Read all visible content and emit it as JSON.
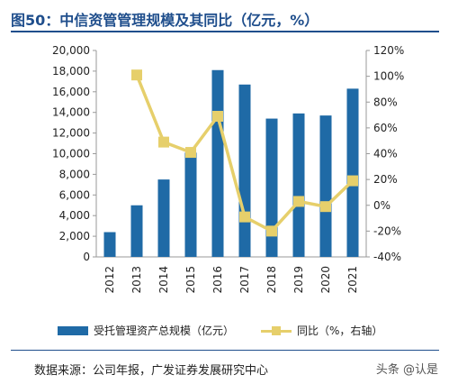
{
  "title": "图50：中信资管管理规模及其同比（亿元，%）",
  "legend": {
    "bar_label": "受托管理资产总规模（亿元）",
    "line_label": "同比（%，右轴）"
  },
  "source": "数据来源：公司年报，广发证券发展研究中心",
  "watermark": "头条 @认是",
  "colors": {
    "bar": "#1f6aa6",
    "line": "#e6cf6b",
    "title": "#1f4e8c"
  },
  "chart_data": {
    "type": "bar",
    "categories": [
      "2012",
      "2013",
      "2014",
      "2015",
      "2016",
      "2017",
      "2018",
      "2019",
      "2020",
      "2021"
    ],
    "series": [
      {
        "name": "受托管理资产总规模（亿元）",
        "type": "bar",
        "axis": "left",
        "values": [
          2400,
          5000,
          7500,
          10100,
          18100,
          16700,
          13400,
          13900,
          13700,
          16300
        ]
      },
      {
        "name": "同比（%，右轴）",
        "type": "line",
        "axis": "right",
        "values": [
          null,
          101,
          49,
          41,
          69,
          -9,
          -20,
          3,
          -1,
          19
        ]
      }
    ],
    "y_left": {
      "range": [
        0,
        20000
      ],
      "ticks": [
        "0",
        "2,000",
        "4,000",
        "6,000",
        "8,000",
        "10,000",
        "12,000",
        "14,000",
        "16,000",
        "18,000",
        "20,000"
      ]
    },
    "y_right": {
      "range": [
        -40,
        120
      ],
      "ticks": [
        "-40%",
        "-20%",
        "0%",
        "20%",
        "40%",
        "60%",
        "80%",
        "100%",
        "120%"
      ]
    },
    "grid": false,
    "legend_position": "bottom"
  }
}
